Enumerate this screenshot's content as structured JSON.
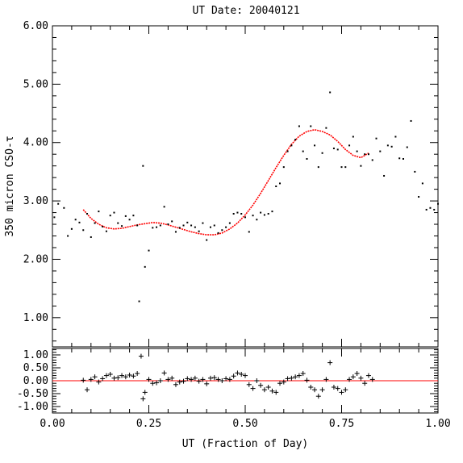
{
  "chart_data": [
    {
      "type": "scatter",
      "title": "UT Date: 20040121",
      "xlabel": "UT (Fraction of Day)",
      "ylabel": "350 micron CSO-τ",
      "xlim": [
        0.0,
        1.0
      ],
      "ylim": [
        0.5,
        6.0
      ],
      "xticks": [
        "0.00",
        "0.25",
        "0.50",
        "0.75",
        "1.00"
      ],
      "yticks": [
        "1.00",
        "2.00",
        "3.00",
        "4.00",
        "5.00",
        "6.00"
      ],
      "colors": {
        "points": "#000000",
        "fit": "#ff0000"
      },
      "series": [
        {
          "role": "measurements",
          "x": [
            0.005,
            0.015,
            0.03,
            0.04,
            0.05,
            0.06,
            0.07,
            0.08,
            0.09,
            0.1,
            0.11,
            0.12,
            0.13,
            0.14,
            0.15,
            0.16,
            0.17,
            0.18,
            0.19,
            0.2,
            0.21,
            0.22,
            0.225,
            0.235,
            0.24,
            0.25,
            0.26,
            0.27,
            0.28,
            0.29,
            0.3,
            0.31,
            0.32,
            0.33,
            0.34,
            0.35,
            0.36,
            0.37,
            0.38,
            0.39,
            0.4,
            0.41,
            0.42,
            0.43,
            0.44,
            0.45,
            0.46,
            0.47,
            0.48,
            0.49,
            0.5,
            0.51,
            0.52,
            0.53,
            0.54,
            0.55,
            0.56,
            0.57,
            0.58,
            0.59,
            0.6,
            0.61,
            0.62,
            0.63,
            0.64,
            0.65,
            0.66,
            0.67,
            0.68,
            0.69,
            0.7,
            0.71,
            0.72,
            0.73,
            0.74,
            0.75,
            0.76,
            0.77,
            0.78,
            0.79,
            0.8,
            0.81,
            0.82,
            0.83,
            0.84,
            0.85,
            0.86,
            0.87,
            0.88,
            0.89,
            0.9,
            0.91,
            0.92,
            0.93,
            0.94,
            0.95,
            0.96,
            0.97,
            0.98,
            0.99,
            1.0
          ],
          "y": [
            2.72,
            2.95,
            2.88,
            2.4,
            2.52,
            2.68,
            2.63,
            2.5,
            2.78,
            2.38,
            2.62,
            2.82,
            2.56,
            2.48,
            2.75,
            2.8,
            2.62,
            2.57,
            2.74,
            2.68,
            2.75,
            2.58,
            1.28,
            3.6,
            1.87,
            2.15,
            2.54,
            2.55,
            2.58,
            2.9,
            2.6,
            2.65,
            2.47,
            2.54,
            2.58,
            2.63,
            2.58,
            2.55,
            2.48,
            2.62,
            2.33,
            2.55,
            2.58,
            2.45,
            2.5,
            2.55,
            2.62,
            2.78,
            2.8,
            2.78,
            2.72,
            2.47,
            2.75,
            2.68,
            2.8,
            2.76,
            2.78,
            2.82,
            3.25,
            3.3,
            3.58,
            3.85,
            3.95,
            4.05,
            4.28,
            3.85,
            3.72,
            4.28,
            3.95,
            3.58,
            3.82,
            4.25,
            4.86,
            3.9,
            3.88,
            3.58,
            3.58,
            3.95,
            4.1,
            3.85,
            3.6,
            3.8,
            3.8,
            3.7,
            4.07,
            3.85,
            3.43,
            3.95,
            3.93,
            4.1,
            3.73,
            3.72,
            3.92,
            4.37,
            3.5,
            3.07,
            3.3,
            2.85,
            2.88,
            2.85,
            2.95
          ]
        },
        {
          "role": "fit",
          "x": [
            0.08,
            0.1,
            0.12,
            0.14,
            0.16,
            0.18,
            0.2,
            0.22,
            0.24,
            0.26,
            0.28,
            0.3,
            0.32,
            0.34,
            0.36,
            0.38,
            0.4,
            0.42,
            0.44,
            0.46,
            0.48,
            0.5,
            0.52,
            0.54,
            0.56,
            0.58,
            0.6,
            0.62,
            0.64,
            0.66,
            0.68,
            0.7,
            0.72,
            0.74,
            0.76,
            0.78,
            0.8,
            0.82
          ],
          "y": [
            2.85,
            2.7,
            2.6,
            2.54,
            2.52,
            2.53,
            2.56,
            2.59,
            2.61,
            2.63,
            2.62,
            2.59,
            2.55,
            2.51,
            2.47,
            2.44,
            2.42,
            2.42,
            2.45,
            2.52,
            2.62,
            2.76,
            2.93,
            3.13,
            3.35,
            3.57,
            3.78,
            3.97,
            4.11,
            4.19,
            4.22,
            4.19,
            4.13,
            4.02,
            3.88,
            3.78,
            3.74,
            3.82
          ]
        }
      ]
    },
    {
      "type": "scatter",
      "title": "",
      "xlabel": "",
      "ylabel": "",
      "xlim": [
        0.0,
        1.0
      ],
      "ylim": [
        -1.25,
        1.25
      ],
      "yticks": [
        "1.00",
        "0.50",
        "0.00",
        "-0.50",
        "-1.00"
      ],
      "colors": {
        "points": "#000000",
        "zero_line": "#ff0000"
      },
      "series": [
        {
          "role": "residuals",
          "x": [
            0.08,
            0.09,
            0.1,
            0.11,
            0.12,
            0.13,
            0.14,
            0.15,
            0.16,
            0.17,
            0.18,
            0.19,
            0.2,
            0.21,
            0.22,
            0.23,
            0.235,
            0.24,
            0.25,
            0.26,
            0.27,
            0.28,
            0.29,
            0.3,
            0.31,
            0.32,
            0.33,
            0.34,
            0.35,
            0.36,
            0.37,
            0.38,
            0.39,
            0.4,
            0.41,
            0.42,
            0.43,
            0.44,
            0.45,
            0.46,
            0.47,
            0.48,
            0.49,
            0.5,
            0.51,
            0.52,
            0.53,
            0.54,
            0.55,
            0.56,
            0.57,
            0.58,
            0.59,
            0.6,
            0.61,
            0.62,
            0.63,
            0.64,
            0.65,
            0.66,
            0.67,
            0.68,
            0.69,
            0.7,
            0.71,
            0.72,
            0.73,
            0.74,
            0.75,
            0.76,
            0.77,
            0.78,
            0.79,
            0.8,
            0.81,
            0.82,
            0.83
          ],
          "y": [
            0.02,
            -0.35,
            0.05,
            0.15,
            -0.05,
            0.08,
            0.2,
            0.25,
            0.1,
            0.12,
            0.2,
            0.15,
            0.22,
            0.18,
            0.28,
            0.95,
            -0.7,
            -0.45,
            0.05,
            -0.1,
            -0.08,
            0.0,
            0.3,
            0.05,
            0.1,
            -0.15,
            -0.05,
            -0.02,
            0.08,
            0.05,
            0.1,
            -0.02,
            0.05,
            -0.12,
            0.1,
            0.12,
            0.05,
            0.0,
            0.08,
            0.05,
            0.18,
            0.3,
            0.25,
            0.2,
            -0.15,
            -0.3,
            0.0,
            -0.18,
            -0.35,
            -0.25,
            -0.4,
            -0.45,
            -0.1,
            -0.05,
            0.08,
            0.1,
            0.15,
            0.2,
            0.28,
            0.02,
            -0.25,
            -0.35,
            -0.6,
            -0.35,
            0.05,
            0.7,
            -0.25,
            -0.3,
            -0.45,
            -0.35,
            0.05,
            0.15,
            0.28,
            0.1,
            -0.1,
            0.2,
            0.05
          ]
        }
      ]
    }
  ]
}
